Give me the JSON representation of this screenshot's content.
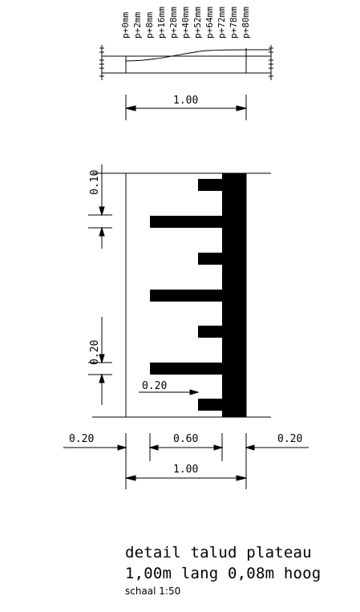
{
  "profile_labels": [
    "p+0mm",
    "p+2mm",
    "p+8mm",
    "p+16mm",
    "p+28mm",
    "p+40mm",
    "p+52mm",
    "p+64mm",
    "p+72mm",
    "p+78mm",
    "p+80mm"
  ],
  "profile_dim": "1.00",
  "plan": {
    "dim_top_gap": "0.10",
    "dim_mid_gap": "0.20",
    "dim_inner": "0.20",
    "bottom_left": "0.20",
    "bottom_mid": "0.60",
    "bottom_right": "0.20",
    "bottom_total": "1.00"
  },
  "caption": {
    "title": "detail talud plateau",
    "subtitle": "1,00m lang 0,08m hoog",
    "scale": "schaal 1:50"
  }
}
